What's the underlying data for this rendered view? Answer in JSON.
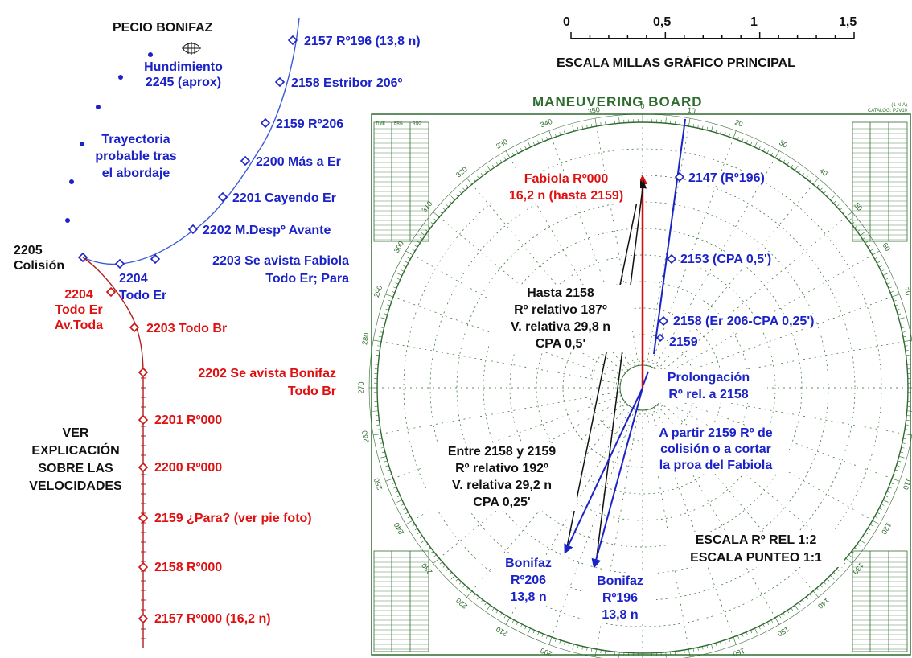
{
  "colors": {
    "blue": "#1a22c8",
    "red": "#e01010",
    "black": "#111111",
    "board_green": "#2e6b2e"
  },
  "left": {
    "wreck_title": "PECIO BONIFAZ",
    "sinking": "Hundimiento\n2245 (aprox)",
    "drift": "Trayectoria\nprobable tras\nel abordaje",
    "collision": "2205\nColisión",
    "see_note": "VER\nEXPLICACIÓN\nSOBRE LAS\nVELOCIDADES",
    "bonifaz_track": [
      {
        "text": "2157 Rº196 (13,8 n)"
      },
      {
        "text": "2158 Estribor 206º"
      },
      {
        "text": "2159 Rº206"
      },
      {
        "text": "2200 Más a Er"
      },
      {
        "text": "2201 Cayendo Er"
      },
      {
        "text": "2202 M.Despº Avante"
      },
      {
        "text": "2203 Se avista Fabiola\nTodo Er; Para"
      },
      {
        "text": "2204\nTodo Er"
      }
    ],
    "fabiola_track": [
      {
        "text": "2204\nTodo Er\nAv.Toda"
      },
      {
        "text": "2203 Todo Br"
      },
      {
        "text": "2202 Se avista Bonifaz\nTodo Br"
      },
      {
        "text": "2201 Rº000"
      },
      {
        "text": "2200 Rº000"
      },
      {
        "text": "2159 ¿Para? (ver pie foto)"
      },
      {
        "text": "2158 Rº000"
      },
      {
        "text": "2157 Rº000 (16,2 n)"
      }
    ]
  },
  "scale": {
    "ticks": [
      "0",
      "0,5",
      "1",
      "1,5"
    ],
    "label": "ESCALA MILLAS GRÁFICO PRINCIPAL"
  },
  "board": {
    "title": "MANEUVERING BOARD",
    "catalog": "(1-N-A)\nCATALOG: P2V10",
    "table_headers": [
      "TIME",
      "BRG",
      "RNG"
    ],
    "fabiola": "Fabiola Rº000\n16,2 n (hasta 2159)",
    "plots": [
      {
        "text": "2147 (Rº196)"
      },
      {
        "text": "2153 (CPA 0,5')"
      },
      {
        "text": "2158 (Er 206-CPA 0,25')"
      },
      {
        "text": "2159"
      }
    ],
    "prolongation": "Prolongación\nRº rel. a 2158",
    "from_2159": "A partir 2159 Rº de\ncolisión o a cortar\nla proa del Fabiola",
    "until_2158": "Hasta 2158\nRº relativo 187º\nV. relativa 29,8 n\nCPA 0,5'",
    "between": "Entre 2158 y 2159\nRº relativo 192º\nV. relativa 29,2 n\nCPA 0,25'",
    "bonifaz_206": "Bonifaz\nRº206\n13,8 n",
    "bonifaz_196": "Bonifaz\nRº196\n13,8 n",
    "scales": "ESCALA Rº REL 1:2\nESCALA PUNTEO 1:1"
  }
}
